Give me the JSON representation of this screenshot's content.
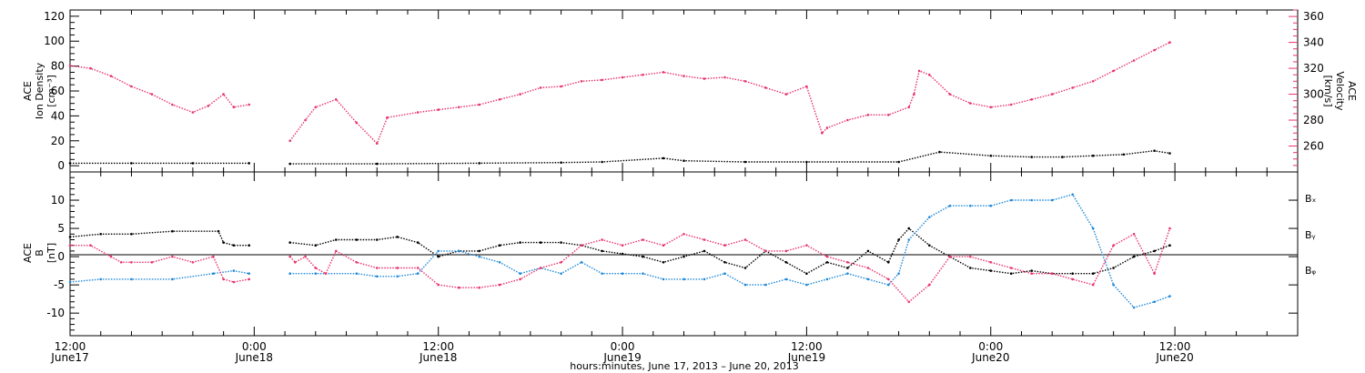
{
  "colors": {
    "black": "#000000",
    "pink": "#e8336a",
    "blue": "#1f88d8"
  },
  "chart_data": [
    {
      "type": "scatter",
      "ylabel_lines": [
        "ACE",
        "Ion Density",
        "[cm⁻³]"
      ],
      "ylabel_right_lines": [
        "ACE",
        "Velocity",
        "[km/s]"
      ],
      "ylim": [
        -5,
        125
      ],
      "ylim_right": [
        240,
        365
      ],
      "yticks": [
        0,
        20,
        40,
        60,
        80,
        100,
        120
      ],
      "yticks_right": [
        260,
        280,
        300,
        320,
        340,
        360
      ],
      "series": [
        {
          "color": "#000000",
          "axis": "left",
          "segments": [
            {
              "x": [
                0,
                6,
                12,
                17.5
              ],
              "y": [
                2,
                2,
                2,
                2
              ]
            },
            {
              "x": [
                21.5,
                30,
                40,
                48,
                52,
                58,
                60,
                66,
                72,
                81,
                85,
                90,
                94,
                97,
                100,
                103,
                106,
                107.5
              ],
              "y": [
                1.5,
                1.5,
                2,
                2.5,
                3,
                6,
                4,
                3,
                3,
                3,
                11,
                8,
                7,
                7,
                8,
                9,
                12,
                10
              ]
            }
          ]
        },
        {
          "color": "#e8336a",
          "axis": "right",
          "segments": [
            {
              "x": [
                0,
                2,
                4,
                6,
                8,
                10,
                12,
                13.5,
                15,
                16,
                17.5
              ],
              "y": [
                322,
                320,
                314,
                306,
                300,
                292,
                286,
                291,
                300,
                290,
                292
              ]
            },
            {
              "x": [
                21.5,
                23,
                24,
                26,
                28,
                30,
                31,
                34,
                36,
                38,
                40,
                42,
                44,
                46,
                48,
                50,
                52,
                54,
                56,
                58,
                60,
                62,
                64,
                66,
                68,
                70,
                72,
                73.5,
                74,
                76,
                78,
                80,
                82,
                82.5,
                83,
                84,
                86,
                88,
                90,
                92,
                94,
                96,
                98,
                100,
                102,
                104,
                106,
                107.5
              ],
              "y": [
                264,
                280,
                290,
                296,
                278,
                262,
                282,
                286,
                288,
                290,
                292,
                296,
                300,
                305,
                306,
                310,
                311,
                313,
                315,
                317,
                314,
                312,
                313,
                310,
                305,
                300,
                306,
                270,
                274,
                280,
                284,
                284,
                290,
                300,
                318,
                315,
                300,
                293,
                290,
                292,
                296,
                300,
                305,
                310,
                318,
                326,
                334,
                340
              ]
            }
          ]
        }
      ]
    },
    {
      "type": "scatter",
      "ylabel_lines": [
        "ACE",
        "B",
        "[nT]"
      ],
      "ylim": [
        -14,
        15
      ],
      "yticks": [
        -10,
        -5,
        0,
        5,
        10
      ],
      "legend": [
        "Bₓ",
        "Bᵧ",
        "Bᵩ"
      ],
      "legend_colors": [
        "#000000",
        "#1f88d8",
        "#e8336a"
      ],
      "series": [
        {
          "color": "#000000",
          "segments": [
            {
              "x": [
                0,
                3,
                6,
                10,
                14.5,
                15,
                16,
                17.5
              ],
              "y": [
                3.5,
                4,
                4,
                4.5,
                4.5,
                2.5,
                2,
                2
              ]
            },
            {
              "x": [
                21.5,
                24,
                26,
                28,
                30,
                32,
                34,
                36,
                38,
                40,
                42,
                44,
                46,
                48,
                50,
                52,
                54,
                56,
                58,
                60,
                62,
                64,
                66,
                68,
                70,
                72,
                74,
                76,
                78,
                80,
                81,
                82,
                84,
                86,
                88,
                90,
                92,
                94,
                96,
                98,
                100,
                102,
                104,
                106,
                107.5
              ],
              "y": [
                2.5,
                2,
                3,
                3,
                3,
                3.5,
                2.5,
                0,
                1,
                1,
                2,
                2.5,
                2.5,
                2.5,
                2,
                1,
                0.5,
                0,
                -1,
                0,
                1,
                -1,
                -2,
                1,
                -1,
                -3,
                -1,
                -2,
                1,
                -1,
                3,
                5,
                2,
                0,
                -2,
                -2.5,
                -3,
                -2.5,
                -3,
                -3,
                -3,
                -2,
                0,
                1,
                2
              ]
            }
          ]
        },
        {
          "color": "#1f88d8",
          "segments": [
            {
              "x": [
                0,
                3,
                6,
                10,
                14,
                16,
                17.5
              ],
              "y": [
                -4.5,
                -4,
                -4,
                -4,
                -3,
                -2.5,
                -3
              ]
            },
            {
              "x": [
                21.5,
                24,
                28,
                30,
                32,
                34,
                36,
                38,
                40,
                42,
                44,
                46,
                48,
                50,
                52,
                54,
                56,
                58,
                60,
                62,
                64,
                66,
                68,
                70,
                72,
                74,
                76,
                78,
                80,
                81,
                82,
                84,
                86,
                88,
                90,
                92,
                94,
                96,
                98,
                100,
                102,
                104,
                106,
                107.5
              ],
              "y": [
                -3,
                -3,
                -3,
                -3.5,
                -3.5,
                -3,
                1,
                1,
                0,
                -1,
                -3,
                -2,
                -3,
                -1,
                -3,
                -3,
                -3,
                -4,
                -4,
                -4,
                -3,
                -5,
                -5,
                -4,
                -5,
                -4,
                -3,
                -4,
                -5,
                -3,
                3,
                7,
                9,
                9,
                9,
                10,
                10,
                10,
                11,
                5,
                -5,
                -9,
                -8,
                -7
              ]
            }
          ]
        },
        {
          "color": "#e8336a",
          "segments": [
            {
              "x": [
                0,
                2,
                4,
                5,
                6,
                8,
                10,
                12,
                14,
                15,
                16,
                17.5
              ],
              "y": [
                2,
                2,
                0,
                -1,
                -1,
                -1,
                0,
                -1,
                0,
                -4,
                -4.5,
                -4
              ]
            },
            {
              "x": [
                21.5,
                22,
                23,
                24,
                25,
                26,
                28,
                30,
                32,
                34,
                36,
                38,
                40,
                42,
                44,
                46,
                48,
                50,
                52,
                54,
                56,
                58,
                60,
                62,
                64,
                66,
                68,
                70,
                72,
                74,
                76,
                78,
                80,
                82,
                84,
                86,
                88,
                90,
                92,
                94,
                96,
                98,
                100,
                102,
                104,
                106,
                107.5
              ],
              "y": [
                0,
                -1,
                0,
                -2,
                -3,
                1,
                -1,
                -2,
                -2,
                -2,
                -5,
                -5.5,
                -5.5,
                -5,
                -4,
                -2,
                -1,
                2,
                3,
                2,
                3,
                2,
                4,
                3,
                2,
                3,
                1,
                1,
                2,
                0,
                -1,
                -2,
                -4,
                -8,
                -5,
                0,
                0,
                -1,
                -2,
                -3,
                -3,
                -4,
                -5,
                2,
                4,
                -3,
                5
              ]
            }
          ]
        }
      ]
    }
  ],
  "x_axis": {
    "range_hours": [
      0,
      120
    ],
    "tick_labels": [
      {
        "hour": 0,
        "time": "12:00",
        "date": "June17"
      },
      {
        "hour": 18,
        "time": "0:00",
        "date": "June18"
      },
      {
        "hour": 36,
        "time": "12:00",
        "date": "June18"
      },
      {
        "hour": 54,
        "time": "0:00",
        "date": "June19"
      },
      {
        "hour": 72,
        "time": "12:00",
        "date": "June19"
      },
      {
        "hour": 90,
        "time": "0:00",
        "date": "June20"
      },
      {
        "hour": 108,
        "time": "12:00",
        "date": "June20"
      }
    ],
    "title": "hours:minutes, June 17, 2013 – June 20, 2013"
  }
}
